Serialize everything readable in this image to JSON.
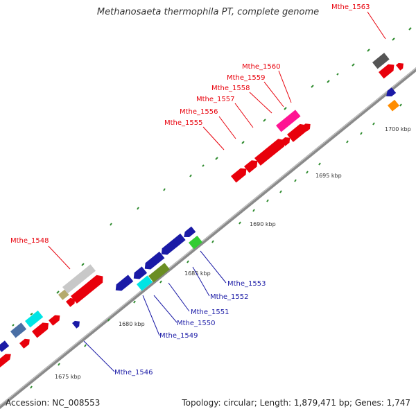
{
  "title": "Methanosaeta thermophila PT, complete genome",
  "accession_label": "Accession: NC_008553",
  "summary_label": "Topology: circular; Length: 1,879,471 bp; Genes: 1,747",
  "scale_labels": {
    "kb1675": "1675 kbp",
    "kb1680": "1680 kbp",
    "kb1685": "1685 kbp",
    "kb1690": "1690 kbp",
    "kb1695": "1695 kbp",
    "kb1700": "1700 kbp"
  },
  "gene_labels_top": [
    {
      "id": "Mthe_1548",
      "color": "#e8000b"
    },
    {
      "id": "Mthe_1555",
      "color": "#e8000b"
    },
    {
      "id": "Mthe_1556",
      "color": "#e8000b"
    },
    {
      "id": "Mthe_1557",
      "color": "#e8000b"
    },
    {
      "id": "Mthe_1558",
      "color": "#e8000b"
    },
    {
      "id": "Mthe_1559",
      "color": "#e8000b"
    },
    {
      "id": "Mthe_1560",
      "color": "#e8000b"
    },
    {
      "id": "Mthe_1563",
      "color": "#e8000b"
    }
  ],
  "gene_labels_bottom": [
    {
      "id": "Mthe_1546",
      "color": "#1a1aa6"
    },
    {
      "id": "Mthe_1549",
      "color": "#1a1aa6"
    },
    {
      "id": "Mthe_1550",
      "color": "#1a1aa6"
    },
    {
      "id": "Mthe_1551",
      "color": "#1a1aa6"
    },
    {
      "id": "Mthe_1552",
      "color": "#1a1aa6"
    },
    {
      "id": "Mthe_1553",
      "color": "#1a1aa6"
    }
  ]
}
